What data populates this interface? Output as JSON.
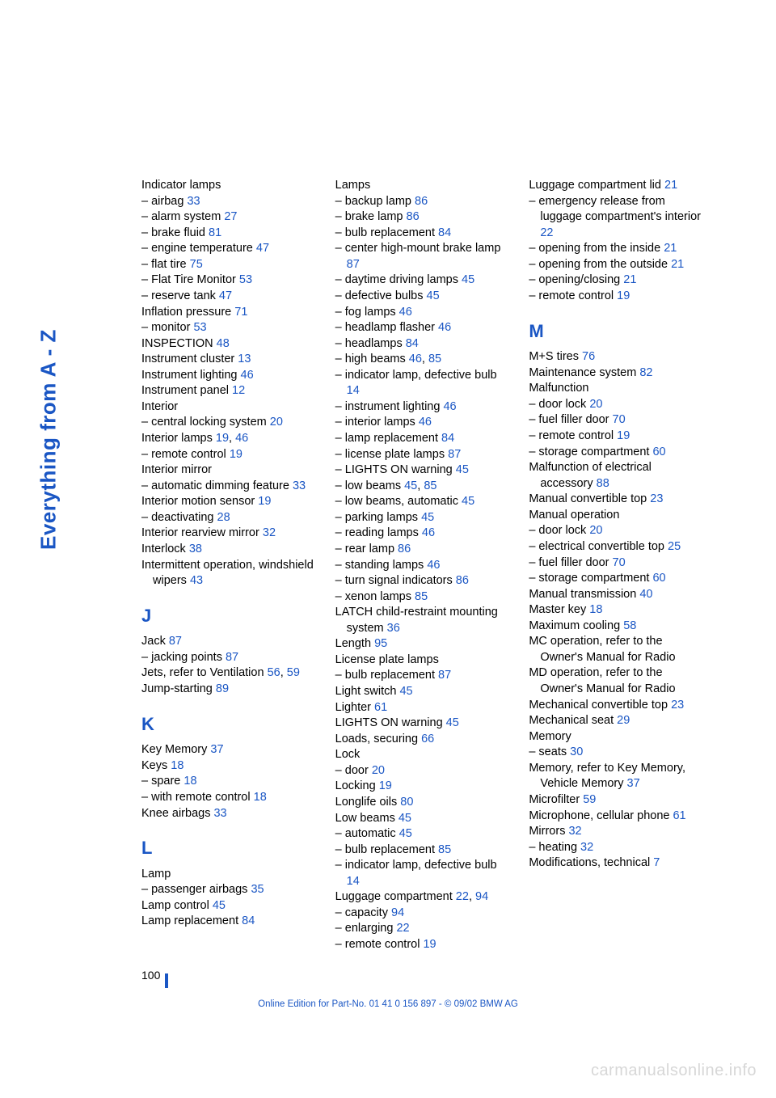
{
  "side_title": "Everything from A - Z",
  "page_number": "100",
  "footer": "Online Edition for Part-No. 01 41 0 156 897 - © 09/02 BMW AG",
  "watermark": "carmanualsonline.info",
  "link_color": "#1a56c4",
  "columns": [
    {
      "entries": [
        {
          "label": "Indicator lamps"
        },
        {
          "label": "– airbag",
          "refs": [
            "33"
          ]
        },
        {
          "label": "– alarm system",
          "refs": [
            "27"
          ]
        },
        {
          "label": "– brake fluid",
          "refs": [
            "81"
          ]
        },
        {
          "label": "– engine temperature",
          "refs": [
            "47"
          ]
        },
        {
          "label": "– flat tire",
          "refs": [
            "75"
          ]
        },
        {
          "label": "– Flat Tire Monitor",
          "refs": [
            "53"
          ]
        },
        {
          "label": "– reserve tank",
          "refs": [
            "47"
          ]
        },
        {
          "label": "Inflation pressure",
          "refs": [
            "71"
          ]
        },
        {
          "label": "– monitor",
          "refs": [
            "53"
          ]
        },
        {
          "label": "INSPECTION",
          "refs": [
            "48"
          ]
        },
        {
          "label": "Instrument cluster",
          "refs": [
            "13"
          ]
        },
        {
          "label": "Instrument lighting",
          "refs": [
            "46"
          ]
        },
        {
          "label": "Instrument panel",
          "refs": [
            "12"
          ]
        },
        {
          "label": "Interior"
        },
        {
          "label": "– central locking system",
          "refs": [
            "20"
          ]
        },
        {
          "label": "Interior lamps",
          "refs": [
            "19",
            "46"
          ]
        },
        {
          "label": "– remote control",
          "refs": [
            "19"
          ]
        },
        {
          "label": "Interior mirror"
        },
        {
          "label": "– automatic dimming feature",
          "refs": [
            "33"
          ],
          "hang": true
        },
        {
          "label": "Interior motion sensor",
          "refs": [
            "19"
          ]
        },
        {
          "label": "– deactivating",
          "refs": [
            "28"
          ]
        },
        {
          "label": "Interior rearview mirror",
          "refs": [
            "32"
          ]
        },
        {
          "label": "Interlock",
          "refs": [
            "38"
          ]
        },
        {
          "label": "Intermittent operation, windshield wipers",
          "refs": [
            "43"
          ],
          "hang": true
        },
        {
          "letter": "J"
        },
        {
          "label": "Jack",
          "refs": [
            "87"
          ]
        },
        {
          "label": "– jacking points",
          "refs": [
            "87"
          ]
        },
        {
          "label": "Jets, refer to Ventilation",
          "refs": [
            "56",
            "59"
          ],
          "hang": true
        },
        {
          "label": "Jump-starting",
          "refs": [
            "89"
          ]
        },
        {
          "letter": "K"
        },
        {
          "label": "Key Memory",
          "refs": [
            "37"
          ]
        },
        {
          "label": "Keys",
          "refs": [
            "18"
          ]
        },
        {
          "label": "– spare",
          "refs": [
            "18"
          ]
        },
        {
          "label": "– with remote control",
          "refs": [
            "18"
          ]
        },
        {
          "label": "Knee airbags",
          "refs": [
            "33"
          ]
        },
        {
          "letter": "L"
        },
        {
          "label": "Lamp"
        },
        {
          "label": "– passenger airbags",
          "refs": [
            "35"
          ]
        },
        {
          "label": "Lamp control",
          "refs": [
            "45"
          ]
        },
        {
          "label": "Lamp replacement",
          "refs": [
            "84"
          ]
        }
      ]
    },
    {
      "entries": [
        {
          "label": "Lamps"
        },
        {
          "label": "– backup lamp",
          "refs": [
            "86"
          ]
        },
        {
          "label": "– brake lamp",
          "refs": [
            "86"
          ]
        },
        {
          "label": "– bulb replacement",
          "refs": [
            "84"
          ]
        },
        {
          "label": "– center high-mount brake lamp",
          "refs": [
            "87"
          ],
          "hang": true
        },
        {
          "label": "– daytime driving lamps",
          "refs": [
            "45"
          ]
        },
        {
          "label": "– defective bulbs",
          "refs": [
            "45"
          ]
        },
        {
          "label": "– fog lamps",
          "refs": [
            "46"
          ]
        },
        {
          "label": "– headlamp flasher",
          "refs": [
            "46"
          ]
        },
        {
          "label": "– headlamps",
          "refs": [
            "84"
          ]
        },
        {
          "label": "– high beams",
          "refs": [
            "46",
            "85"
          ]
        },
        {
          "label": "– indicator lamp, defective bulb",
          "refs": [
            "14"
          ],
          "hang": true
        },
        {
          "label": "– instrument lighting",
          "refs": [
            "46"
          ]
        },
        {
          "label": "– interior lamps",
          "refs": [
            "46"
          ]
        },
        {
          "label": "– lamp replacement",
          "refs": [
            "84"
          ]
        },
        {
          "label": "– license plate lamps",
          "refs": [
            "87"
          ]
        },
        {
          "label": "– LIGHTS ON warning",
          "refs": [
            "45"
          ]
        },
        {
          "label": "– low beams",
          "refs": [
            "45",
            "85"
          ]
        },
        {
          "label": "– low beams, automatic",
          "refs": [
            "45"
          ]
        },
        {
          "label": "– parking lamps",
          "refs": [
            "45"
          ]
        },
        {
          "label": "– reading lamps",
          "refs": [
            "46"
          ]
        },
        {
          "label": "– rear lamp",
          "refs": [
            "86"
          ]
        },
        {
          "label": "– standing lamps",
          "refs": [
            "46"
          ]
        },
        {
          "label": "– turn signal indicators",
          "refs": [
            "86"
          ]
        },
        {
          "label": "– xenon lamps",
          "refs": [
            "85"
          ]
        },
        {
          "label": "LATCH child-restraint mounting system",
          "refs": [
            "36"
          ],
          "hang": true
        },
        {
          "label": "Length",
          "refs": [
            "95"
          ]
        },
        {
          "label": "License plate lamps"
        },
        {
          "label": "– bulb replacement",
          "refs": [
            "87"
          ]
        },
        {
          "label": "Light switch",
          "refs": [
            "45"
          ]
        },
        {
          "label": "Lighter",
          "refs": [
            "61"
          ]
        },
        {
          "label": "LIGHTS ON warning",
          "refs": [
            "45"
          ]
        },
        {
          "label": "Loads, securing",
          "refs": [
            "66"
          ]
        },
        {
          "label": "Lock"
        },
        {
          "label": "– door",
          "refs": [
            "20"
          ]
        },
        {
          "label": "Locking",
          "refs": [
            "19"
          ]
        },
        {
          "label": "Longlife oils",
          "refs": [
            "80"
          ]
        },
        {
          "label": "Low beams",
          "refs": [
            "45"
          ]
        },
        {
          "label": "– automatic",
          "refs": [
            "45"
          ]
        },
        {
          "label": "– bulb replacement",
          "refs": [
            "85"
          ]
        },
        {
          "label": "– indicator lamp, defective bulb",
          "refs": [
            "14"
          ],
          "hang": true
        },
        {
          "label": "Luggage compartment",
          "refs": [
            "22",
            "94"
          ],
          "hang": true
        },
        {
          "label": "– capacity",
          "refs": [
            "94"
          ]
        },
        {
          "label": "– enlarging",
          "refs": [
            "22"
          ]
        },
        {
          "label": "– remote control",
          "refs": [
            "19"
          ]
        }
      ]
    },
    {
      "entries": [
        {
          "label": "Luggage compartment lid",
          "refs": [
            "21"
          ],
          "hang": true
        },
        {
          "label": "– emergency release from luggage compartment's interior",
          "refs": [
            "22"
          ],
          "hang": true
        },
        {
          "label": "– opening from the inside",
          "refs": [
            "21"
          ],
          "hang": true
        },
        {
          "label": "– opening from the outside",
          "refs": [
            "21"
          ],
          "hang": true
        },
        {
          "label": "– opening/closing",
          "refs": [
            "21"
          ]
        },
        {
          "label": "– remote control",
          "refs": [
            "19"
          ]
        },
        {
          "letter": "M"
        },
        {
          "label": "M+S tires",
          "refs": [
            "76"
          ]
        },
        {
          "label": "Maintenance system",
          "refs": [
            "82"
          ]
        },
        {
          "label": "Malfunction"
        },
        {
          "label": "– door lock",
          "refs": [
            "20"
          ]
        },
        {
          "label": "– fuel filler door",
          "refs": [
            "70"
          ]
        },
        {
          "label": "– remote control",
          "refs": [
            "19"
          ]
        },
        {
          "label": "– storage compartment",
          "refs": [
            "60"
          ]
        },
        {
          "label": "Malfunction of electrical accessory",
          "refs": [
            "88"
          ],
          "hang": true
        },
        {
          "label": "Manual convertible top",
          "refs": [
            "23"
          ]
        },
        {
          "label": "Manual operation"
        },
        {
          "label": "– door lock",
          "refs": [
            "20"
          ]
        },
        {
          "label": "– electrical convertible top",
          "refs": [
            "25"
          ],
          "hang": true
        },
        {
          "label": "– fuel filler door",
          "refs": [
            "70"
          ]
        },
        {
          "label": "– storage compartment",
          "refs": [
            "60"
          ]
        },
        {
          "label": "Manual transmission",
          "refs": [
            "40"
          ]
        },
        {
          "label": "Master key",
          "refs": [
            "18"
          ]
        },
        {
          "label": "Maximum cooling",
          "refs": [
            "58"
          ]
        },
        {
          "label": "MC operation, refer to the Owner's Manual for Radio",
          "hang": true
        },
        {
          "label": "MD operation, refer to the Owner's Manual for Radio",
          "hang": true
        },
        {
          "label": "Mechanical convertible top",
          "refs": [
            "23"
          ],
          "hang": true
        },
        {
          "label": "Mechanical seat",
          "refs": [
            "29"
          ]
        },
        {
          "label": "Memory"
        },
        {
          "label": "– seats",
          "refs": [
            "30"
          ]
        },
        {
          "label": "Memory, refer to Key Memory, Vehicle Memory",
          "refs": [
            "37"
          ],
          "hang": true
        },
        {
          "label": "Microfilter",
          "refs": [
            "59"
          ]
        },
        {
          "label": "Microphone, cellular phone",
          "refs": [
            "61"
          ],
          "hang": true
        },
        {
          "label": "Mirrors",
          "refs": [
            "32"
          ]
        },
        {
          "label": "– heating",
          "refs": [
            "32"
          ]
        },
        {
          "label": "Modifications, technical",
          "refs": [
            "7"
          ],
          "hang": true
        }
      ]
    }
  ]
}
